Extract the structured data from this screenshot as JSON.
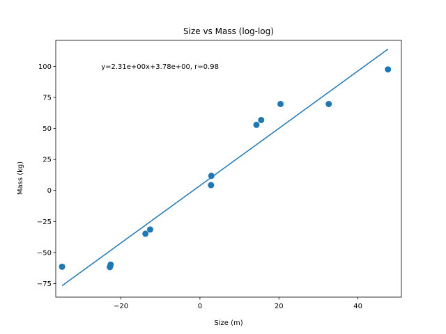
{
  "chart_data": {
    "type": "scatter",
    "title": "Size vs Mass (log-log)",
    "xlabel": "Size (m)",
    "ylabel": "Mass (kg)",
    "xlim": [
      -36.5,
      51
    ],
    "ylim": [
      -86,
      121
    ],
    "xticks": [
      -20,
      0,
      20,
      40
    ],
    "xtick_labels": [
      "−20",
      "0",
      "20",
      "40"
    ],
    "yticks": [
      -75,
      -50,
      -25,
      0,
      25,
      50,
      75,
      100
    ],
    "ytick_labels": [
      "−75",
      "−50",
      "−25",
      "0",
      "25",
      "50",
      "75",
      "100"
    ],
    "grid": false,
    "legend": "none",
    "marker_color": "#1f77b4",
    "line_color": "#1f77b4",
    "points": [
      {
        "x": -34.9,
        "y": -61.5
      },
      {
        "x": -22.6,
        "y": -59.8
      },
      {
        "x": -22.8,
        "y": -61.8
      },
      {
        "x": -13.8,
        "y": -34.9
      },
      {
        "x": -12.6,
        "y": -31.5
      },
      {
        "x": 2.9,
        "y": 11.8
      },
      {
        "x": 2.8,
        "y": 4.3
      },
      {
        "x": 14.3,
        "y": 52.9
      },
      {
        "x": 15.5,
        "y": 56.8
      },
      {
        "x": 20.4,
        "y": 69.7
      },
      {
        "x": 32.6,
        "y": 69.7
      },
      {
        "x": 47.6,
        "y": 97.6
      }
    ],
    "fit_line": {
      "x": [
        -34.9,
        47.6
      ],
      "y": [
        -76.8,
        113.9
      ]
    },
    "annotation": {
      "text": "y=2.31e+00x+3.78e+00, r=0.98",
      "x": -25,
      "y": 100
    }
  }
}
